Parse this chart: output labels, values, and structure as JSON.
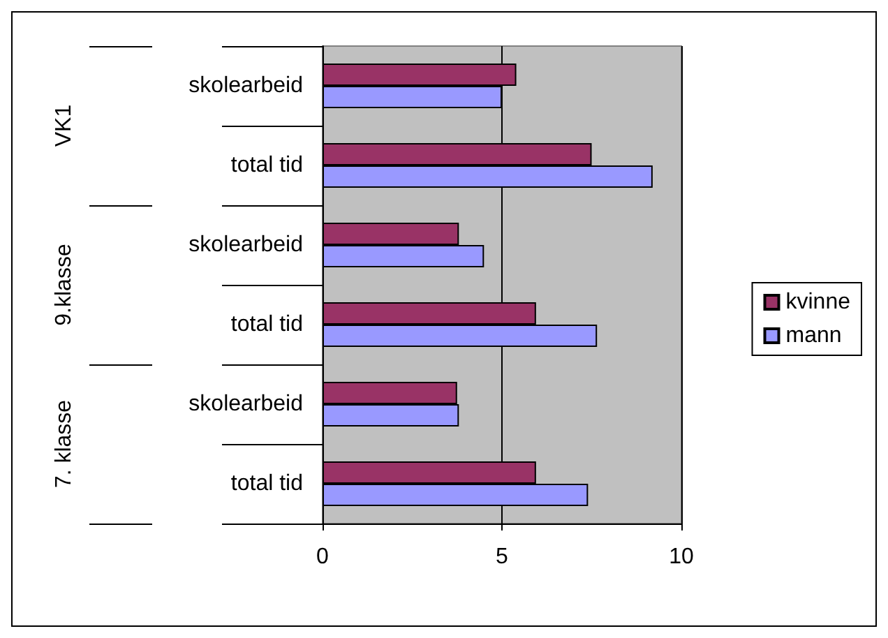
{
  "chart_data": {
    "type": "bar",
    "orientation": "horizontal",
    "categories": [
      "skolearbeid",
      "total tid",
      "skolearbeid",
      "total tid",
      "skolearbeid",
      "total tid"
    ],
    "annotations": [
      "VK1",
      "9.klasse",
      "7. klasse"
    ],
    "series": [
      {
        "name": "kvinne",
        "color": "#993366",
        "values": [
          5.4,
          7.5,
          3.8,
          5.95,
          3.75,
          5.95
        ]
      },
      {
        "name": "mann",
        "color": "#9999ff",
        "values": [
          5.0,
          9.2,
          4.5,
          7.65,
          3.8,
          7.4
        ]
      }
    ],
    "xlim": [
      0,
      10
    ],
    "xticks": [
      0,
      5,
      10
    ],
    "grid": "x",
    "legend": "right"
  }
}
